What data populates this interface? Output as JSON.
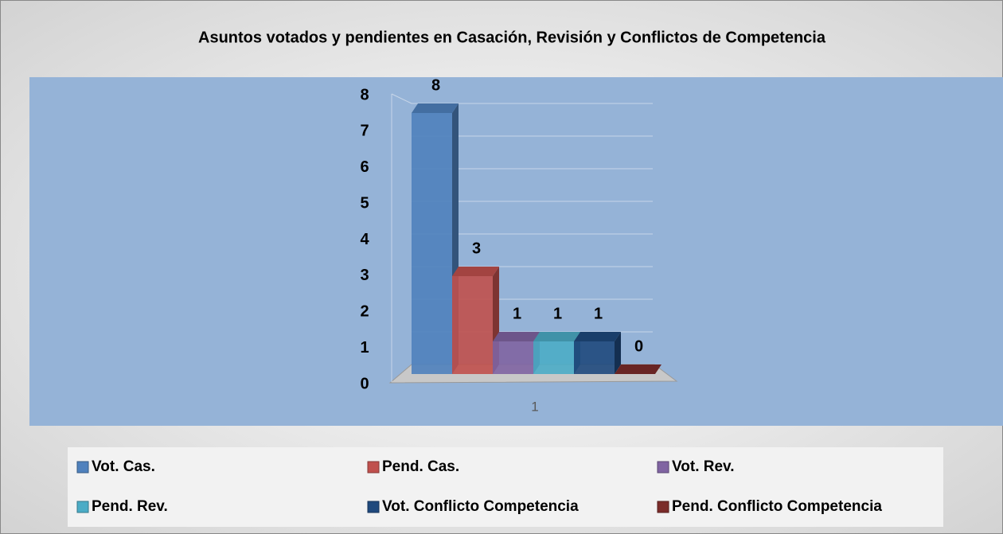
{
  "chart_data": {
    "type": "bar",
    "title": "Asuntos votados y pendientes en Casación, Revisión y Conflictos de Competencia",
    "categories": [
      "1"
    ],
    "series": [
      {
        "name": "Vot. Cas.",
        "color": "#4f81bd",
        "values": [
          8
        ]
      },
      {
        "name": "Pend. Cas.",
        "color": "#c0504d",
        "values": [
          3
        ]
      },
      {
        "name": "Vot. Rev.",
        "color": "#8064a2",
        "values": [
          1
        ]
      },
      {
        "name": "Pend. Rev.",
        "color": "#4bacc6",
        "values": [
          1
        ]
      },
      {
        "name": "Vot. Conflicto Competencia",
        "color": "#1f497d",
        "values": [
          1
        ]
      },
      {
        "name": "Pend. Conflicto Competencia",
        "color": "#7b2c2a",
        "values": [
          0
        ]
      }
    ],
    "ylim": [
      0,
      8
    ],
    "yticks": [
      0,
      1,
      2,
      3,
      4,
      5,
      6,
      7,
      8
    ],
    "grid": true,
    "legend": "bottom"
  }
}
